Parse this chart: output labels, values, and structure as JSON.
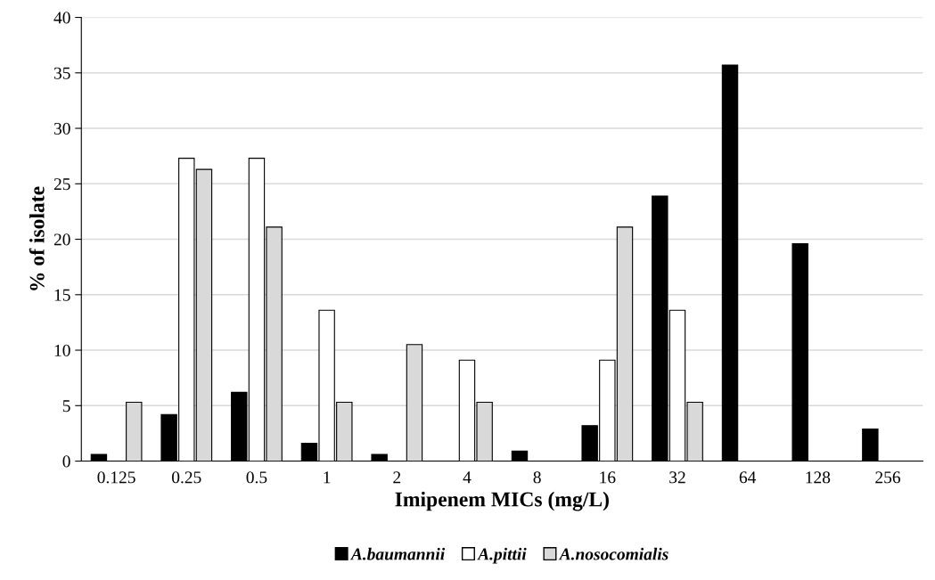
{
  "chart_data": {
    "type": "bar",
    "xlabel": "Imipenem MICs (mg/L)",
    "ylabel": "% of isolate",
    "categories": [
      "0.125",
      "0.25",
      "0.5",
      "1",
      "2",
      "4",
      "8",
      "16",
      "32",
      "64",
      "128",
      "256"
    ],
    "series": [
      {
        "name": "A.baumannii",
        "color": "#000000",
        "values": [
          0.6,
          4.2,
          6.2,
          1.6,
          0.6,
          0,
          0.9,
          3.2,
          23.9,
          35.7,
          19.6,
          2.9
        ]
      },
      {
        "name": "A.pittii",
        "color": "#ffffff",
        "values": [
          0,
          27.3,
          27.3,
          13.6,
          0,
          9.1,
          0,
          9.1,
          13.6,
          0,
          0,
          0
        ]
      },
      {
        "name": "A.nosocomialis",
        "color": "#d9d9d9",
        "values": [
          5.3,
          26.3,
          21.1,
          5.3,
          10.5,
          5.3,
          0,
          21.1,
          5.3,
          0,
          0,
          0
        ]
      }
    ],
    "ylim": [
      0,
      40
    ],
    "yticks": [
      0,
      5,
      10,
      15,
      20,
      25,
      30,
      35,
      40
    ],
    "grid": "y",
    "legend": "bottom"
  }
}
